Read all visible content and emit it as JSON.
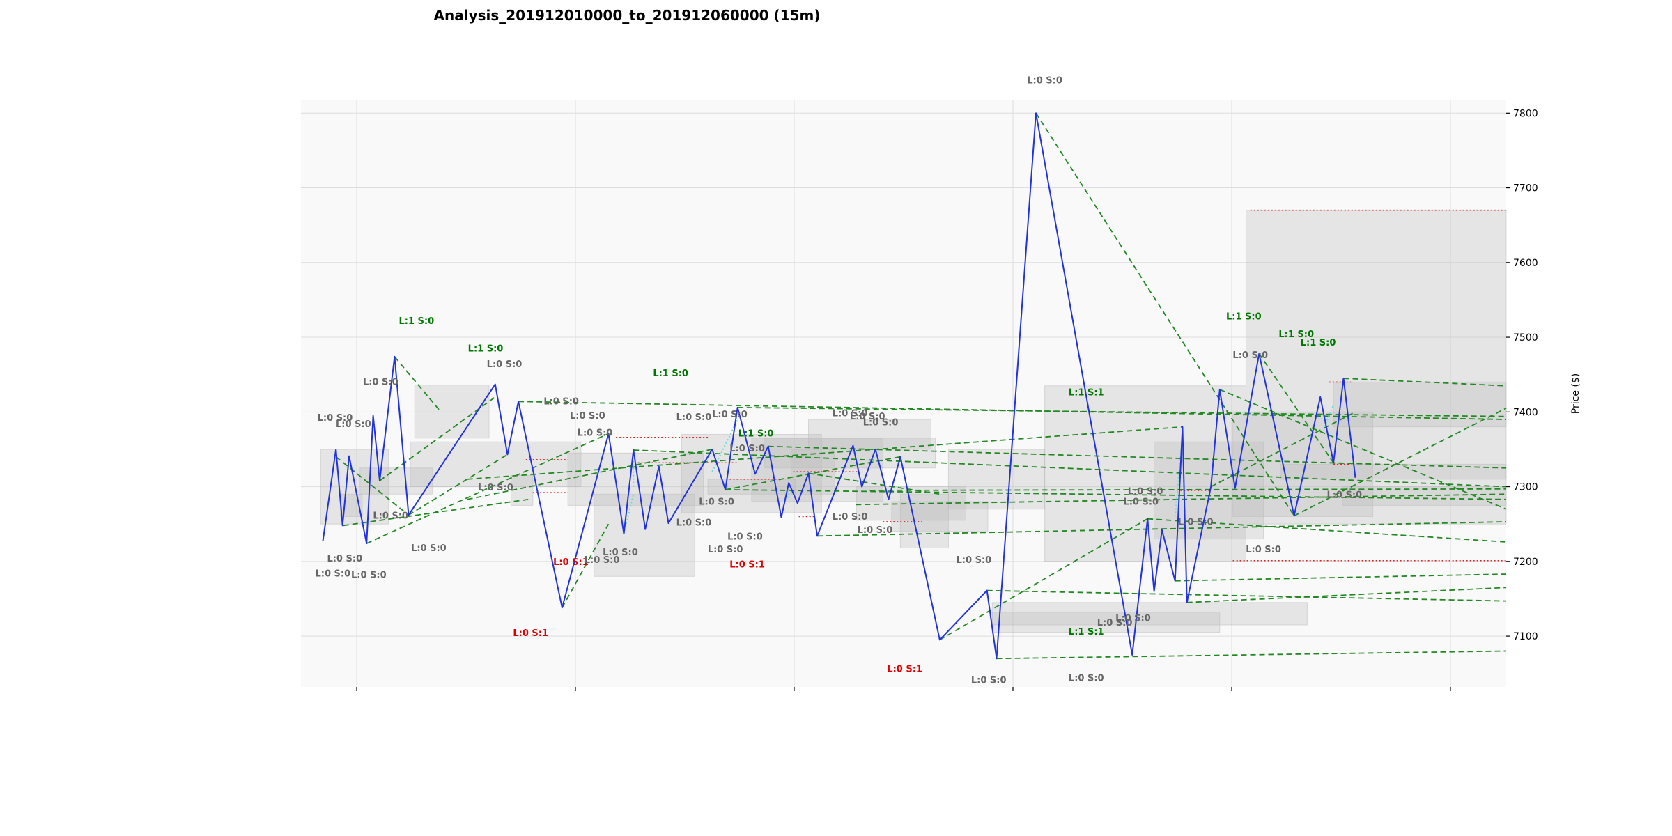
{
  "chart_data": {
    "type": "line",
    "title": "Analysis_201912010000_to_201912060000 (15m)",
    "ylabel": "Price ($)",
    "xlabel": "",
    "ylim": [
      7032,
      7818
    ],
    "y_ticks": [
      7100,
      7200,
      7300,
      7400,
      7500,
      7600,
      7700,
      7800
    ],
    "x_tick_count": 6,
    "grid": true,
    "colors": {
      "price": "#2233dd",
      "trend": "#228822",
      "level": "#dd2222",
      "link": "#66dddd",
      "zone": "#bbbbbb",
      "plot_bg": "#f9f9f9",
      "grid": "#dddddd",
      "ann_green": "#007700",
      "ann_red": "#dd0000",
      "ann_gray": "#666666"
    },
    "series": [
      {
        "values": [
          [
            0.05,
            7227
          ],
          [
            0.08,
            7350
          ],
          [
            0.095,
            7248
          ],
          [
            0.11,
            7341
          ],
          [
            0.15,
            7224
          ],
          [
            0.165,
            7395
          ],
          [
            0.18,
            7308
          ],
          [
            0.214,
            7474
          ],
          [
            0.246,
            7262
          ],
          [
            0.444,
            7437
          ],
          [
            0.472,
            7343
          ],
          [
            0.497,
            7414
          ],
          [
            0.597,
            7138
          ],
          [
            0.703,
            7371
          ],
          [
            0.738,
            7237
          ],
          [
            0.76,
            7349
          ],
          [
            0.787,
            7243
          ],
          [
            0.818,
            7327
          ],
          [
            0.84,
            7251
          ],
          [
            0.94,
            7350
          ],
          [
            0.97,
            7296
          ],
          [
            0.998,
            7406
          ],
          [
            1.038,
            7317
          ],
          [
            1.068,
            7354
          ],
          [
            1.098,
            7259
          ],
          [
            1.115,
            7305
          ],
          [
            1.135,
            7278
          ],
          [
            1.16,
            7318
          ],
          [
            1.18,
            7234
          ],
          [
            1.262,
            7355
          ],
          [
            1.282,
            7300
          ],
          [
            1.313,
            7350
          ],
          [
            1.343,
            7283
          ],
          [
            1.37,
            7340
          ],
          [
            1.46,
            7095
          ],
          [
            1.568,
            7161
          ],
          [
            1.59,
            7070
          ],
          [
            1.68,
            7800
          ],
          [
            1.9,
            7075
          ],
          [
            1.935,
            7257
          ],
          [
            1.95,
            7160
          ],
          [
            1.968,
            7242
          ],
          [
            1.998,
            7174
          ],
          [
            2.015,
            7380
          ],
          [
            2.025,
            7145
          ],
          [
            2.08,
            7300
          ],
          [
            2.1,
            7430
          ],
          [
            2.135,
            7298
          ],
          [
            2.19,
            7478
          ],
          [
            2.27,
            7261
          ],
          [
            2.33,
            7420
          ],
          [
            2.36,
            7332
          ],
          [
            2.383,
            7445
          ],
          [
            2.41,
            7312
          ]
        ]
      }
    ],
    "trend_lines": [
      [
        [
          0.08,
          7340
        ],
        [
          0.246,
          7262
        ]
      ],
      [
        [
          0.214,
          7474
        ],
        [
          0.32,
          7400
        ]
      ],
      [
        [
          0.15,
          7224
        ],
        [
          0.703,
          7371
        ]
      ],
      [
        [
          0.18,
          7308
        ],
        [
          0.444,
          7420
        ]
      ],
      [
        [
          0.246,
          7262
        ],
        [
          0.472,
          7343
        ]
      ],
      [
        [
          0.497,
          7414
        ],
        [
          2.76,
          7390
        ]
      ],
      [
        [
          0.097,
          7248
        ],
        [
          0.52,
          7283
        ]
      ],
      [
        [
          0.38,
          7283
        ],
        [
          0.94,
          7350
        ]
      ],
      [
        [
          0.597,
          7138
        ],
        [
          0.703,
          7250
        ]
      ],
      [
        [
          0.76,
          7349
        ],
        [
          2.76,
          7300
        ]
      ],
      [
        [
          0.97,
          7296
        ],
        [
          2.76,
          7283
        ]
      ],
      [
        [
          0.998,
          7406
        ],
        [
          2.76,
          7394
        ]
      ],
      [
        [
          0.94,
          7350
        ],
        [
          0.94,
          7350
        ]
      ],
      [
        [
          0.97,
          7296
        ],
        [
          1.37,
          7340
        ]
      ],
      [
        [
          1.068,
          7354
        ],
        [
          2.76,
          7325
        ]
      ],
      [
        [
          1.16,
          7318
        ],
        [
          1.46,
          7290
        ]
      ],
      [
        [
          1.18,
          7234
        ],
        [
          2.76,
          7253
        ]
      ],
      [
        [
          1.46,
          7095
        ],
        [
          1.935,
          7257
        ]
      ],
      [
        [
          1.568,
          7161
        ],
        [
          2.76,
          7147
        ]
      ],
      [
        [
          1.59,
          7070
        ],
        [
          2.76,
          7080
        ]
      ],
      [
        [
          1.68,
          7800
        ],
        [
          2.27,
          7261
        ]
      ],
      [
        [
          1.935,
          7257
        ],
        [
          2.76,
          7226
        ]
      ],
      [
        [
          1.998,
          7174
        ],
        [
          2.76,
          7183
        ]
      ],
      [
        [
          2.025,
          7145
        ],
        [
          2.76,
          7165
        ]
      ],
      [
        [
          2.19,
          7478
        ],
        [
          2.36,
          7332
        ]
      ],
      [
        [
          2.383,
          7445
        ],
        [
          2.76,
          7435
        ]
      ],
      [
        [
          2.27,
          7261
        ],
        [
          2.76,
          7405
        ]
      ],
      [
        [
          2.1,
          7430
        ],
        [
          2.76,
          7270
        ]
      ],
      [
        [
          1.3,
          7295
        ],
        [
          2.76,
          7297
        ]
      ],
      [
        [
          1.268,
          7276
        ],
        [
          2.76,
          7290
        ]
      ],
      [
        [
          0.38,
          7310
        ],
        [
          2.015,
          7380
        ]
      ],
      [
        [
          2.08,
          7300
        ],
        [
          2.41,
          7400
        ]
      ]
    ],
    "levels": [
      [
        [
          0.514,
          7336
        ],
        [
          0.61,
          7336
        ]
      ],
      [
        [
          0.53,
          7292
        ],
        [
          0.61,
          7292
        ]
      ],
      [
        [
          0.72,
          7366
        ],
        [
          0.93,
          7366
        ]
      ],
      [
        [
          0.77,
          7332
        ],
        [
          1.0,
          7332
        ]
      ],
      [
        [
          0.98,
          7310
        ],
        [
          1.095,
          7310
        ]
      ],
      [
        [
          1.138,
          7260
        ],
        [
          1.178,
          7260
        ]
      ],
      [
        [
          1.125,
          7320
        ],
        [
          1.275,
          7320
        ]
      ],
      [
        [
          1.33,
          7253
        ],
        [
          1.42,
          7253
        ]
      ],
      [
        [
          2.17,
          7670
        ],
        [
          2.76,
          7670
        ]
      ],
      [
        [
          2.13,
          7201
        ],
        [
          2.76,
          7201
        ]
      ],
      [
        [
          2.35,
          7440
        ],
        [
          2.4,
          7440
        ]
      ],
      [
        [
          2.36,
          7330
        ],
        [
          2.4,
          7330
        ]
      ],
      [
        [
          2.01,
          7295
        ],
        [
          2.08,
          7295
        ]
      ]
    ],
    "links": [
      [
        [
          0.76,
          7300
        ],
        [
          0.76,
          7350
        ]
      ],
      [
        [
          0.738,
          7237
        ],
        [
          0.76,
          7290
        ]
      ],
      [
        [
          0.94,
          7320
        ],
        [
          0.998,
          7390
        ]
      ],
      [
        [
          1.115,
          7285
        ],
        [
          1.115,
          7305
        ]
      ],
      [
        [
          1.998,
          7260
        ],
        [
          2.015,
          7370
        ]
      ],
      [
        [
          2.34,
          7380
        ],
        [
          2.36,
          7410
        ]
      ]
    ],
    "zones": [
      [
        0.045,
        0.2,
        7250,
        7350
      ],
      [
        0.09,
        0.14,
        7260,
        7290
      ],
      [
        0.135,
        0.3,
        7290,
        7325
      ],
      [
        0.26,
        0.43,
        7365,
        7436
      ],
      [
        0.25,
        0.64,
        7300,
        7360
      ],
      [
        0.48,
        0.53,
        7275,
        7315
      ],
      [
        0.61,
        0.92,
        7275,
        7345
      ],
      [
        0.67,
        0.9,
        7180,
        7290
      ],
      [
        0.87,
        1.19,
        7265,
        7370
      ],
      [
        0.93,
        1.13,
        7290,
        7310
      ],
      [
        1.03,
        1.33,
        7280,
        7365
      ],
      [
        1.12,
        1.22,
        7290,
        7350
      ],
      [
        1.06,
        1.45,
        7325,
        7365
      ],
      [
        1.16,
        1.44,
        7350,
        7390
      ],
      [
        1.27,
        1.52,
        7255,
        7300
      ],
      [
        1.37,
        1.48,
        7218,
        7290
      ],
      [
        1.35,
        1.57,
        7240,
        7280
      ],
      [
        1.48,
        1.7,
        7270,
        7350
      ],
      [
        1.58,
        2.3,
        7115,
        7145
      ],
      [
        1.58,
        2.1,
        7105,
        7132
      ],
      [
        1.7,
        2.16,
        7200,
        7435
      ],
      [
        2.16,
        2.76,
        7250,
        7670
      ],
      [
        1.95,
        2.2,
        7230,
        7360
      ],
      [
        2.13,
        2.45,
        7260,
        7400
      ],
      [
        2.24,
        2.76,
        7310,
        7330
      ],
      [
        2.38,
        2.76,
        7275,
        7300
      ],
      [
        2.36,
        2.76,
        7380,
        7440
      ]
    ],
    "annotations": [
      {
        "x": 0.264,
        "y": 7518,
        "text": "L:1 S:0",
        "color": "green"
      },
      {
        "x": 0.422,
        "y": 7481,
        "text": "L:1 S:0",
        "color": "green"
      },
      {
        "x": 0.845,
        "y": 7448,
        "text": "L:1 S:0",
        "color": "green"
      },
      {
        "x": 1.04,
        "y": 7367,
        "text": "L:1 S:0",
        "color": "green"
      },
      {
        "x": 1.795,
        "y": 7422,
        "text": "L:1 S:1",
        "color": "green"
      },
      {
        "x": 1.795,
        "y": 7102,
        "text": "L:1 S:1",
        "color": "green"
      },
      {
        "x": 2.155,
        "y": 7524,
        "text": "L:1 S:0",
        "color": "green"
      },
      {
        "x": 2.275,
        "y": 7500,
        "text": "L:1 S:0",
        "color": "green"
      },
      {
        "x": 2.325,
        "y": 7489,
        "text": "L:1 S:0",
        "color": "green"
      },
      {
        "x": 0.525,
        "y": 7100,
        "text": "L:0 S:1",
        "color": "red"
      },
      {
        "x": 0.617,
        "y": 7195,
        "text": "L:0 S:1",
        "color": "red"
      },
      {
        "x": 1.02,
        "y": 7192,
        "text": "L:0 S:1",
        "color": "red"
      },
      {
        "x": 1.38,
        "y": 7052,
        "text": "L:0 S:1",
        "color": "red"
      },
      {
        "x": 1.572,
        "y": 7037,
        "text": "L:0 S:0",
        "color": "gray"
      },
      {
        "x": 1.795,
        "y": 7040,
        "text": "L:0 S:0",
        "color": "gray"
      },
      {
        "x": 1.7,
        "y": 7840,
        "text": "L:0 S:0",
        "color": "gray"
      },
      {
        "x": 0.078,
        "y": 7388,
        "text": "L:0 S:0",
        "color": "gray"
      },
      {
        "x": 0.12,
        "y": 7380,
        "text": "L:0 S:0",
        "color": "gray"
      },
      {
        "x": 0.182,
        "y": 7436,
        "text": "L:0 S:0",
        "color": "gray"
      },
      {
        "x": 0.465,
        "y": 7460,
        "text": "L:0 S:0",
        "color": "gray"
      },
      {
        "x": 0.073,
        "y": 7180,
        "text": "L:0 S:0",
        "color": "gray"
      },
      {
        "x": 0.1,
        "y": 7200,
        "text": "L:0 S:0",
        "color": "gray"
      },
      {
        "x": 0.155,
        "y": 7178,
        "text": "L:0 S:0",
        "color": "gray"
      },
      {
        "x": 0.205,
        "y": 7257,
        "text": "L:0 S:0",
        "color": "gray"
      },
      {
        "x": 0.292,
        "y": 7214,
        "text": "L:0 S:0",
        "color": "gray"
      },
      {
        "x": 0.445,
        "y": 7295,
        "text": "L:0 S:0",
        "color": "gray"
      },
      {
        "x": 0.595,
        "y": 7410,
        "text": "L:0 S:0",
        "color": "gray"
      },
      {
        "x": 0.655,
        "y": 7391,
        "text": "L:0 S:0",
        "color": "gray"
      },
      {
        "x": 0.672,
        "y": 7368,
        "text": "L:0 S:0",
        "color": "gray"
      },
      {
        "x": 0.688,
        "y": 7198,
        "text": "L:0 S:0",
        "color": "gray"
      },
      {
        "x": 0.73,
        "y": 7208,
        "text": "L:0 S:0",
        "color": "gray"
      },
      {
        "x": 0.898,
        "y": 7389,
        "text": "L:0 S:0",
        "color": "gray"
      },
      {
        "x": 0.98,
        "y": 7393,
        "text": "L:0 S:0",
        "color": "gray"
      },
      {
        "x": 1.02,
        "y": 7347,
        "text": "L:0 S:0",
        "color": "gray"
      },
      {
        "x": 0.898,
        "y": 7248,
        "text": "L:0 S:0",
        "color": "gray"
      },
      {
        "x": 0.95,
        "y": 7276,
        "text": "L:0 S:0",
        "color": "gray"
      },
      {
        "x": 1.015,
        "y": 7229,
        "text": "L:0 S:0",
        "color": "gray"
      },
      {
        "x": 0.97,
        "y": 7212,
        "text": "L:0 S:0",
        "color": "gray"
      },
      {
        "x": 1.255,
        "y": 7394,
        "text": "L:0 S:0",
        "color": "gray"
      },
      {
        "x": 1.295,
        "y": 7390,
        "text": "L:0 S:0",
        "color": "gray"
      },
      {
        "x": 1.325,
        "y": 7382,
        "text": "L:0 S:0",
        "color": "gray"
      },
      {
        "x": 1.255,
        "y": 7256,
        "text": "L:0 S:0",
        "color": "gray"
      },
      {
        "x": 1.312,
        "y": 7238,
        "text": "L:0 S:0",
        "color": "gray"
      },
      {
        "x": 1.538,
        "y": 7198,
        "text": "L:0 S:0",
        "color": "gray"
      },
      {
        "x": 1.86,
        "y": 7114,
        "text": "L:0 S:0",
        "color": "gray"
      },
      {
        "x": 1.902,
        "y": 7120,
        "text": "L:0 S:0",
        "color": "gray"
      },
      {
        "x": 1.92,
        "y": 7276,
        "text": "L:0 S:0",
        "color": "gray"
      },
      {
        "x": 1.93,
        "y": 7290,
        "text": "L:0 S:0",
        "color": "gray"
      },
      {
        "x": 2.045,
        "y": 7249,
        "text": "L:0 S:0",
        "color": "gray"
      },
      {
        "x": 2.17,
        "y": 7472,
        "text": "L:0 S:0",
        "color": "gray"
      },
      {
        "x": 2.2,
        "y": 7212,
        "text": "L:0 S:0",
        "color": "gray"
      },
      {
        "x": 2.385,
        "y": 7285,
        "text": "L:0 S:0",
        "color": "gray"
      }
    ]
  }
}
